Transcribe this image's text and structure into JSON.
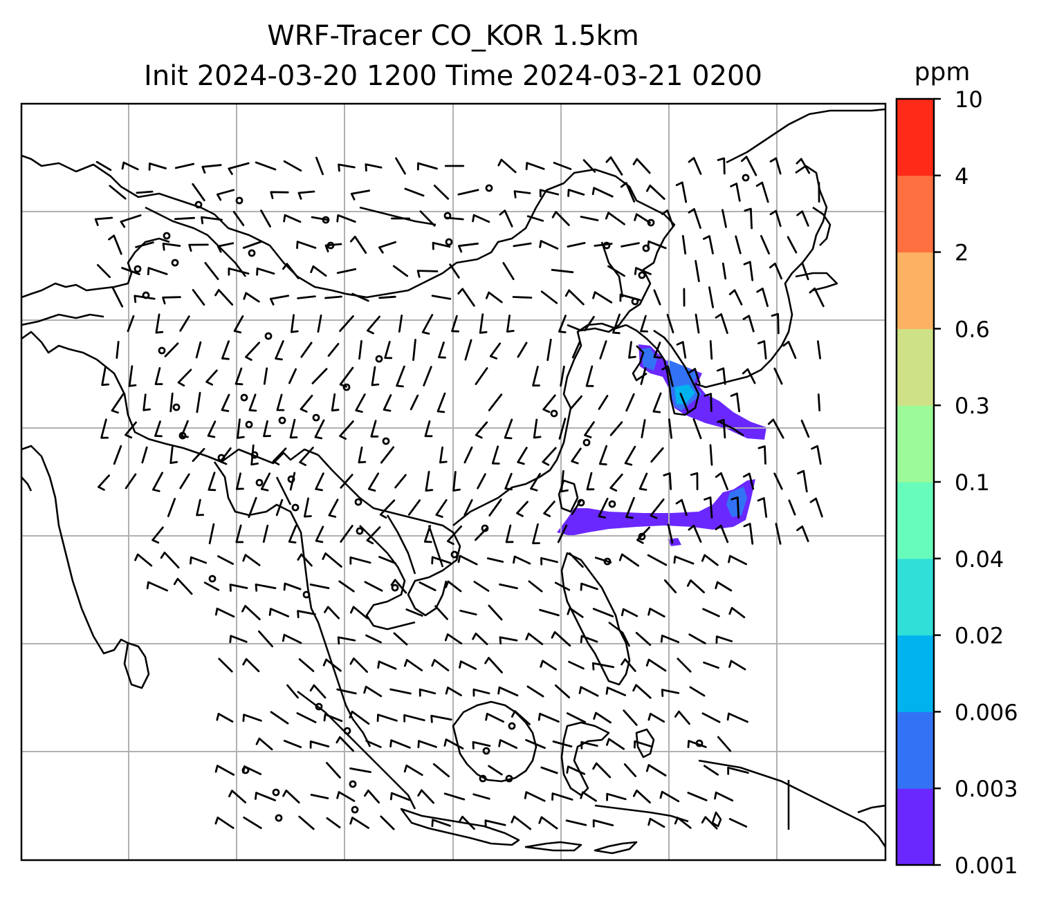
{
  "figure": {
    "title_line1": "WRF-Tracer CO_KOR 1.5km",
    "title_line2": "Init 2024-03-20 1200 Time 2024-03-21 0200"
  },
  "colorbar": {
    "unit": "ppm",
    "levels": [
      "0.001",
      "0.003",
      "0.006",
      "0.02",
      "0.04",
      "0.1",
      "0.3",
      "0.6",
      "2",
      "4",
      "10"
    ],
    "colors": [
      "#6a28ff",
      "#3273f5",
      "#00b3ef",
      "#30dfd7",
      "#68fcbc",
      "#9cfb98",
      "#cfe187",
      "#fdb162",
      "#ff7040",
      "#ff2a17"
    ]
  },
  "map": {
    "grid": true,
    "coastline_color": "#000000",
    "grid_color": "#b0b0b0",
    "wind_barbs": true,
    "tracer_plumes": [
      {
        "region": "Korean Peninsula / East Sea",
        "max_level": "0.02"
      },
      {
        "region": "East China Sea / south of Japan",
        "max_level": "0.006"
      }
    ]
  }
}
